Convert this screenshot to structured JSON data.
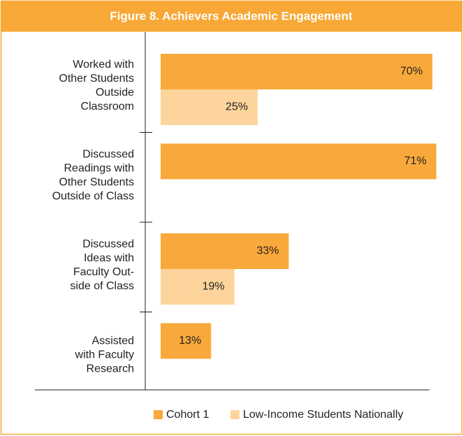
{
  "chart_data": {
    "type": "bar",
    "orientation": "horizontal",
    "title": "Figure 8. Achievers Academic Engagement",
    "categories": [
      [
        "Worked with",
        "Other Students",
        "Outside",
        "Classroom"
      ],
      [
        "Discussed",
        "Readings with",
        "Other Students",
        "Outside of Class"
      ],
      [
        "Discussed",
        "Ideas with",
        "Faculty Out-",
        "side of Class"
      ],
      [
        "Assisted",
        "with Faculty",
        "Research"
      ]
    ],
    "series": [
      {
        "name": "Cohort 1",
        "color": "#f9a93b",
        "values": [
          70,
          71,
          33,
          13
        ],
        "value_labels": [
          "70%",
          "71%",
          "33%",
          "13%"
        ]
      },
      {
        "name": "Low-Income Students Nationally",
        "color": "#fdd59c",
        "values": [
          25,
          null,
          19,
          null
        ],
        "value_labels": [
          "25%",
          null,
          "19%",
          null
        ]
      }
    ],
    "legend": "bottom"
  }
}
